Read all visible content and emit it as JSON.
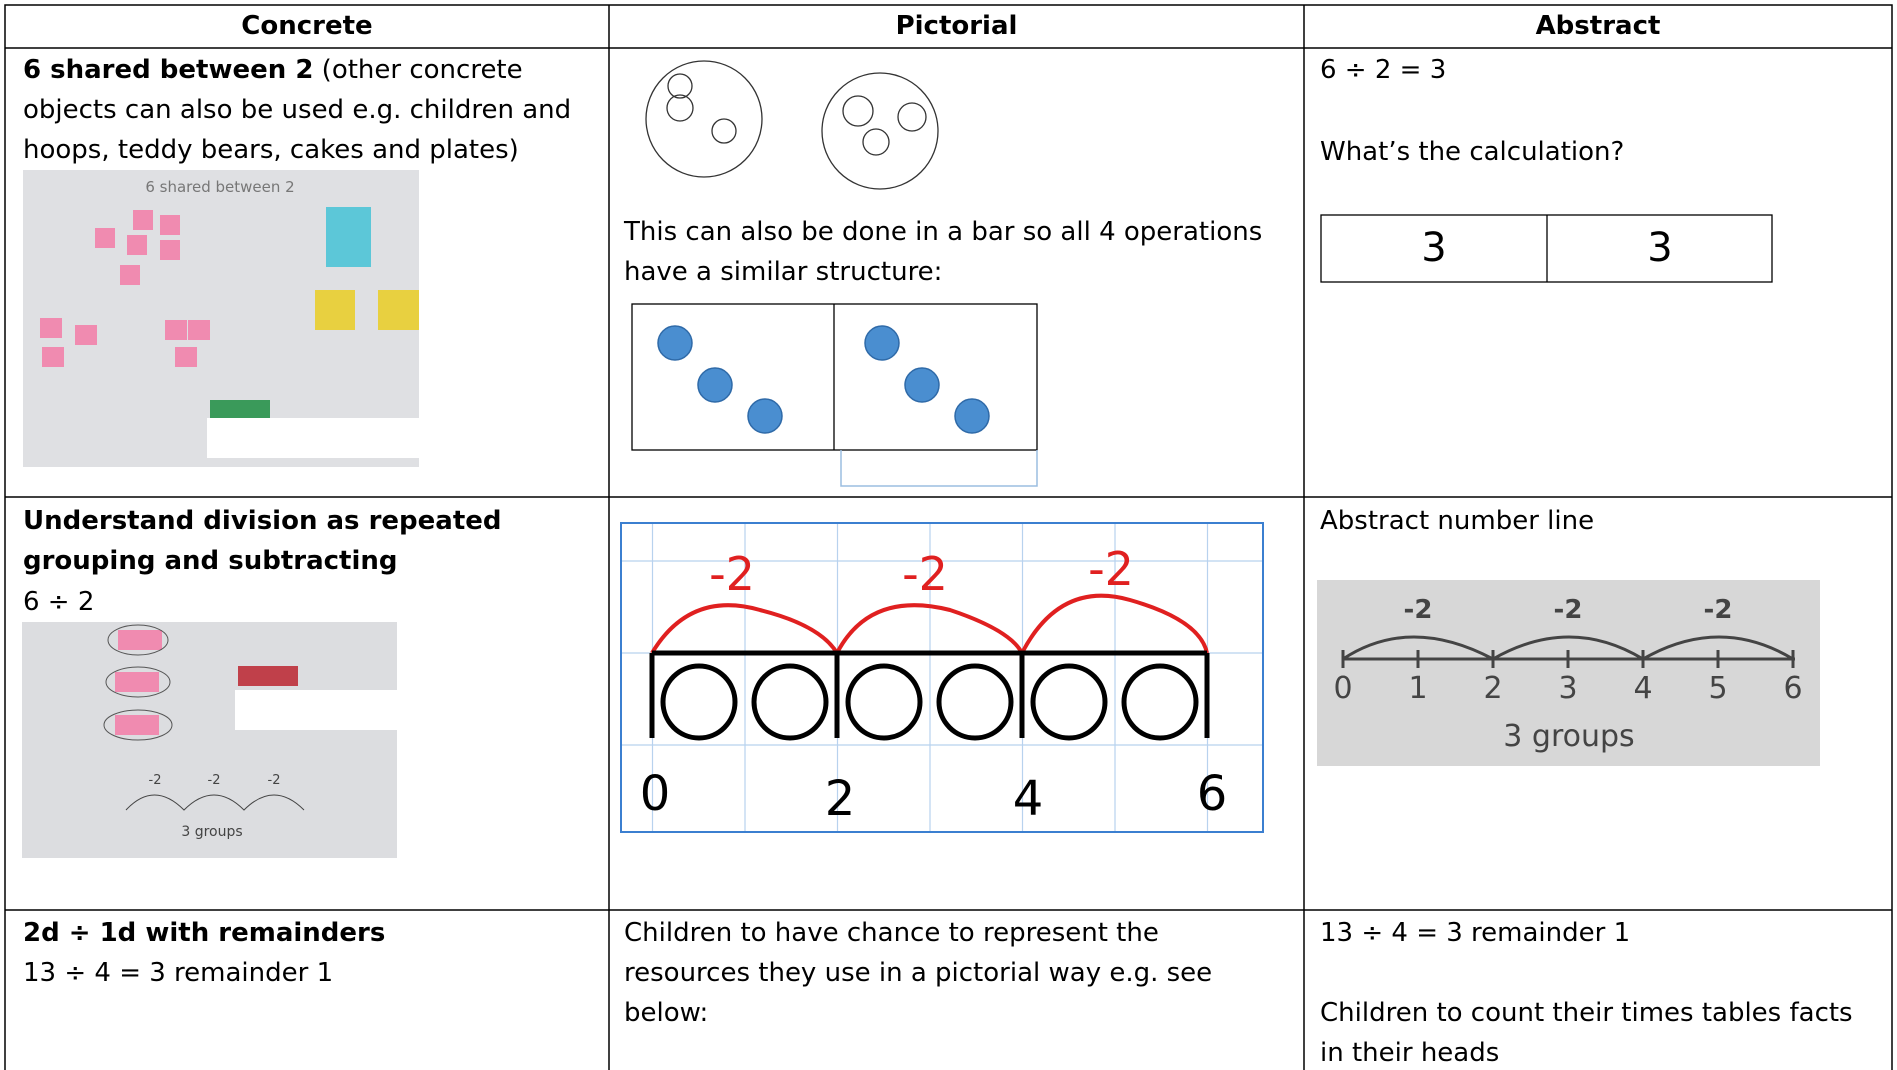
{
  "table": {
    "headers": [
      "Concrete",
      "Pictorial",
      "Abstract"
    ],
    "rows": [
      {
        "concrete": {
          "bold": "6 shared between 2",
          "text": "(other concrete objects can also be used e.g. children and hoops, teddy bears, cakes and plates)",
          "photo_caption": "6 shared between 2"
        },
        "pictorial": {
          "text": "This can also be done in a bar so all 4 operations have a similar structure:"
        },
        "abstract": {
          "equation": "6 ÷ 2 = 3",
          "question": "What’s the calculation?",
          "bar": [
            "3",
            "3"
          ]
        }
      },
      {
        "concrete": {
          "bold": "Understand division as repeated grouping and subtracting",
          "equation": "6 ÷ 2",
          "photo_jumps": [
            "-2",
            "-2",
            "-2"
          ],
          "photo_caption": "3 groups"
        },
        "pictorial": {
          "jumps": [
            "-2",
            "-2",
            "-2"
          ],
          "labels": [
            "0",
            "2",
            "4",
            "6"
          ]
        },
        "abstract": {
          "title": "Abstract number line",
          "jumps": [
            "-2",
            "-2",
            "-2"
          ],
          "labels": [
            "0",
            "1",
            "2",
            "3",
            "4",
            "5",
            "6"
          ],
          "caption": "3 groups"
        }
      },
      {
        "concrete": {
          "bold": "2d ÷ 1d with remainders",
          "equation": "13 ÷ 4 = 3 remainder 1"
        },
        "pictorial": {
          "text": "Children to have chance to represent the resources they use in a pictorial way e.g. see below:"
        },
        "abstract": {
          "equation": "13 ÷ 4 = 3 remainder 1",
          "text": "Children to count their times tables facts in their heads"
        }
      }
    ]
  }
}
